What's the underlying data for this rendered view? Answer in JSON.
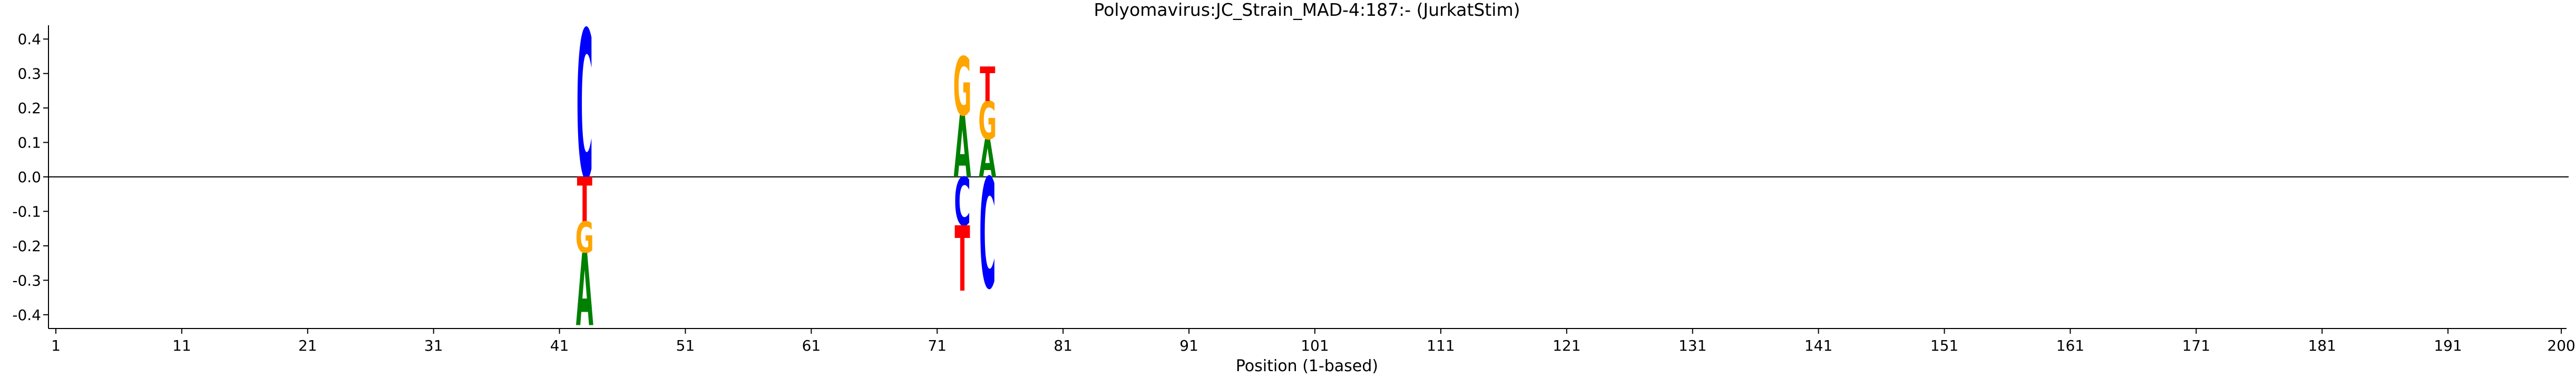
{
  "chart_data": {
    "type": "sequence-logo",
    "title": "Polyomavirus:JC_Strain_MAD-4:187:-  (JurkatStim)",
    "xlabel": "Position (1-based)",
    "ylabel": "",
    "xlim": [
      1,
      201
    ],
    "ylim": [
      -0.44,
      0.44
    ],
    "x_ticks": [
      1,
      11,
      21,
      31,
      41,
      51,
      61,
      71,
      81,
      91,
      101,
      111,
      121,
      131,
      141,
      151,
      161,
      171,
      181,
      191,
      200
    ],
    "y_ticks": [
      -0.4,
      -0.3,
      -0.2,
      -0.1,
      0.0,
      0.1,
      0.2,
      0.3,
      0.4
    ],
    "y_tick_labels": [
      "-0.4",
      "-0.3",
      "-0.2",
      "-0.1",
      "0.0",
      "0.1",
      "0.2",
      "0.3",
      "0.4"
    ],
    "zero_line": true,
    "grid": false,
    "colors": {
      "A": "#008000",
      "C": "#0000ff",
      "G": "#ffa500",
      "T": "#ff0000"
    },
    "positions": [
      {
        "x": 43,
        "up": [
          [
            "C",
            0.43
          ]
        ],
        "down": [
          [
            "T",
            0.13
          ],
          [
            "G",
            0.09
          ],
          [
            "A",
            0.21
          ]
        ]
      },
      {
        "x": 73,
        "up": [
          [
            "A",
            0.18
          ],
          [
            "G",
            0.17
          ]
        ],
        "down": [
          [
            "C",
            0.14
          ],
          [
            "T",
            0.19
          ]
        ]
      },
      {
        "x": 75,
        "up": [
          [
            "A",
            0.11
          ],
          [
            "G",
            0.11
          ],
          [
            "T",
            0.1
          ]
        ],
        "down": [
          [
            "C",
            0.32
          ]
        ]
      }
    ]
  }
}
